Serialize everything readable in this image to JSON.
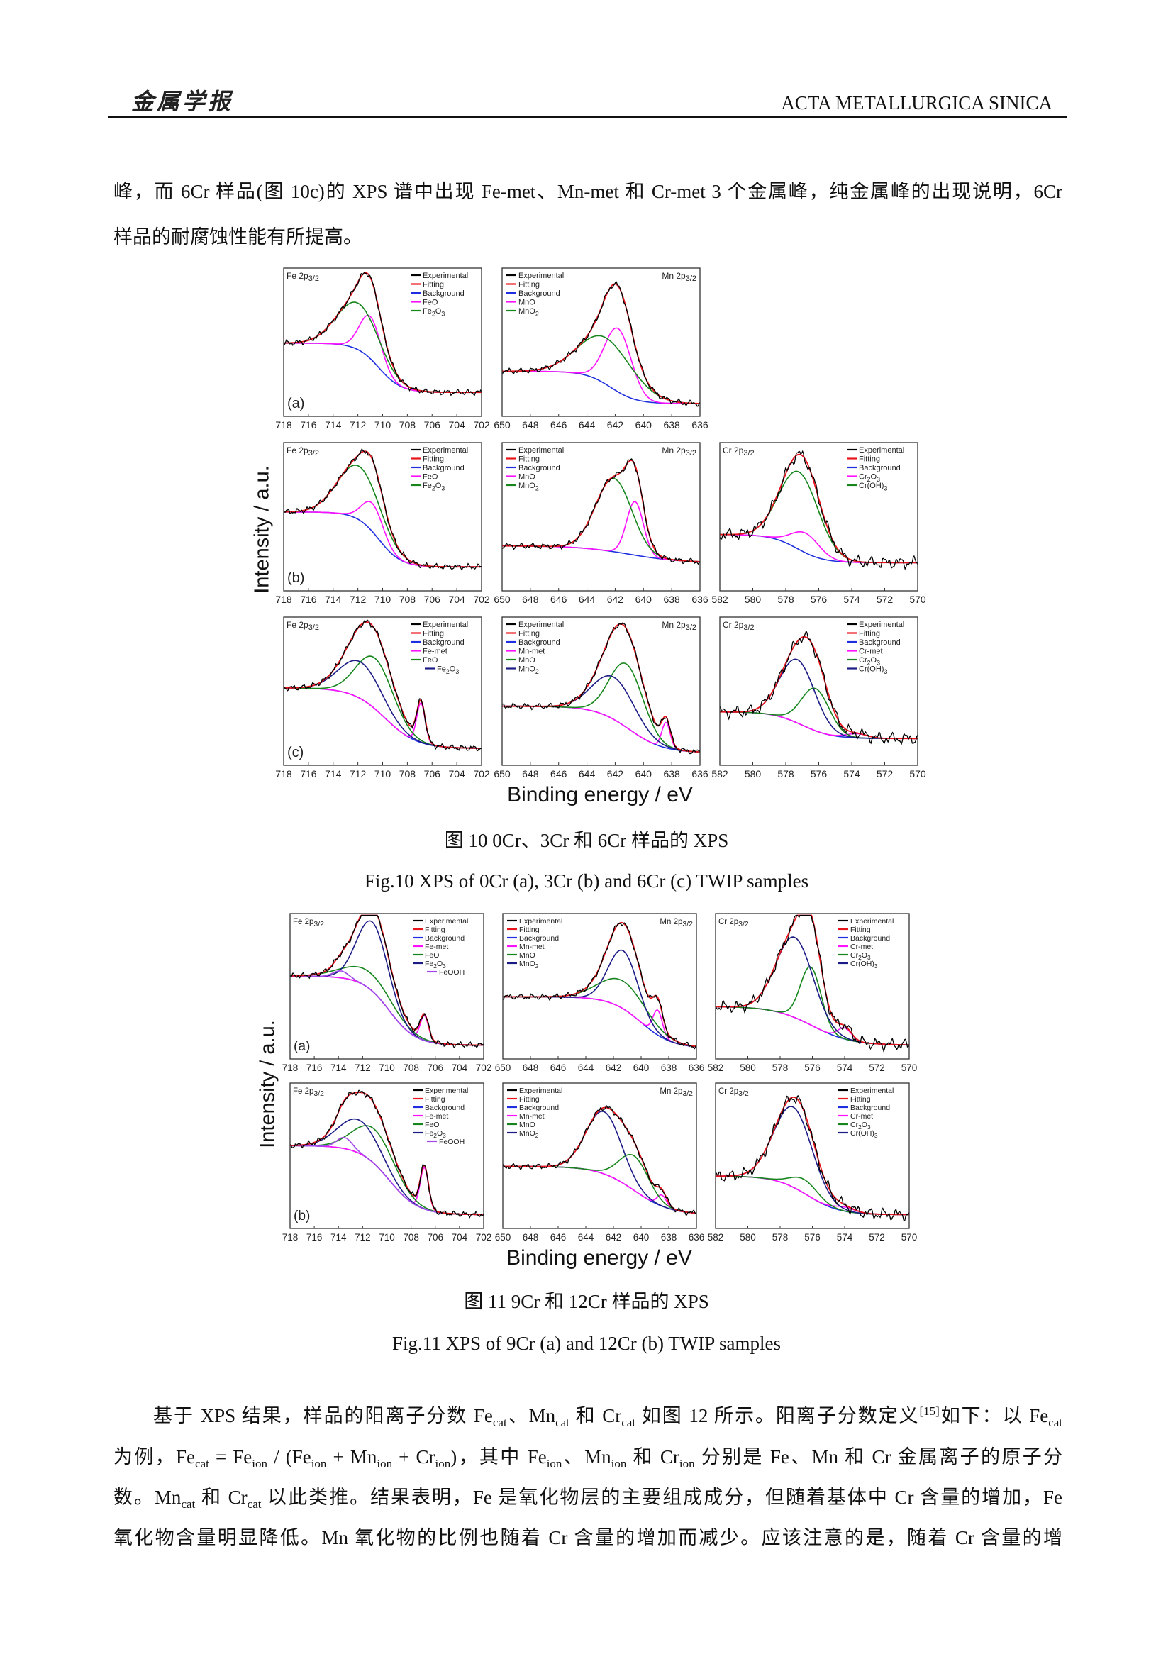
{
  "header": {
    "logo_text": "金属学报",
    "journal": "ACTA METALLURGICA SINICA"
  },
  "intro_lines": [
    "峰，而 6Cr 样品(图 10c)的 XPS 谱中出现 Fe-met、Mn-met 和 Cr-met 3 个金属峰，纯金属峰的出现说明，6Cr",
    "样品的耐腐蚀性能有所提高。"
  ],
  "figures": [
    {
      "caption_zh": "图 10 0Cr、3Cr 和 6Cr 样品的 XPS",
      "caption_en": "Fig.10 XPS of 0Cr (a), 3Cr (b) and 6Cr (c) TWIP samples",
      "ylabel": "Intensity / a.u.",
      "xlabel": "Binding energy / eV"
    },
    {
      "caption_zh": "图 11 9Cr 和 12Cr 样品的 XPS",
      "caption_en": "Fig.11 XPS of 9Cr (a) and 12Cr (b) TWIP samples",
      "ylabel": "Intensity / a.u.",
      "xlabel": "Binding energy / eV"
    }
  ],
  "colors": {
    "Experimental": "#000000",
    "Fitting": "#e8141c",
    "Background": "#1f2fe0",
    "magenta": "#ff10ff",
    "green": "#16861c",
    "navy": "#1c1c86",
    "purple": "#a048e8"
  },
  "chart_data": [
    {
      "figure": 10,
      "type": "line",
      "panel_label": "(a)",
      "title": "Fe 2p",
      "title_sub": "3/2",
      "xlim": [
        718,
        702
      ],
      "xticks": [
        718,
        716,
        714,
        712,
        710,
        708,
        706,
        704,
        702
      ],
      "legend": [
        "Experimental",
        "Fitting",
        "Background",
        "FeO",
        "Fe2O3"
      ],
      "background": {
        "high": 0.52,
        "low": 0.17,
        "center": 710.3,
        "width": 0.9
      },
      "components": [
        {
          "name": "FeO",
          "color": "magenta",
          "center": 711.0,
          "fwhm": 2.0,
          "height": 0.3
        },
        {
          "name": "Fe2O3",
          "color": "green",
          "center": 712.0,
          "fwhm": 4.0,
          "height": 0.33
        }
      ]
    },
    {
      "figure": 10,
      "type": "line",
      "panel_label": "",
      "title": "Mn 2p",
      "title_sub": "3/2",
      "xlim": [
        650,
        636
      ],
      "xticks": [
        650,
        648,
        646,
        644,
        642,
        640,
        638,
        636
      ],
      "legend": [
        "Experimental",
        "Fitting",
        "Background",
        "MnO",
        "MnO2"
      ],
      "background": {
        "high": 0.32,
        "low": 0.09,
        "center": 642.3,
        "width": 0.9
      },
      "components": [
        {
          "name": "MnO",
          "color": "magenta",
          "center": 641.8,
          "fwhm": 2.2,
          "height": 0.45
        },
        {
          "name": "MnO2",
          "color": "green",
          "center": 642.6,
          "fwhm": 4.5,
          "height": 0.33
        }
      ]
    },
    {
      "figure": 10,
      "type": "line",
      "panel_label": "(b)",
      "title": "Fe 2p",
      "title_sub": "3/2",
      "xlim": [
        718,
        702
      ],
      "xticks": [
        718,
        716,
        714,
        712,
        710,
        708,
        706,
        704,
        702
      ],
      "legend": [
        "Experimental",
        "Fitting",
        "Background",
        "FeO",
        "Fe2O3"
      ],
      "background": {
        "high": 0.56,
        "low": 0.17,
        "center": 710.3,
        "width": 0.9
      },
      "components": [
        {
          "name": "FeO",
          "color": "magenta",
          "center": 710.8,
          "fwhm": 2.0,
          "height": 0.2
        },
        {
          "name": "Fe2O3",
          "color": "green",
          "center": 711.9,
          "fwhm": 4.0,
          "height": 0.38
        }
      ]
    },
    {
      "figure": 10,
      "type": "line",
      "panel_label": "",
      "title": "Mn 2p",
      "title_sub": "3/2",
      "xlim": [
        650,
        636
      ],
      "xticks": [
        650,
        648,
        646,
        644,
        642,
        640,
        638,
        636
      ],
      "legend": [
        "Experimental",
        "Fitting",
        "Background",
        "MnO",
        "MnO2"
      ],
      "background": {
        "high": 0.32,
        "low": 0.2,
        "center": 641.0,
        "width": 1.8
      },
      "components": [
        {
          "name": "MnO",
          "color": "magenta",
          "center": 640.6,
          "fwhm": 1.4,
          "height": 0.38
        },
        {
          "name": "MnO2",
          "color": "green",
          "center": 642.1,
          "fwhm": 3.0,
          "height": 0.52
        }
      ]
    },
    {
      "figure": 10,
      "type": "line",
      "panel_label": "",
      "title": "Cr 2p",
      "title_sub": "3/2",
      "xlim": [
        582,
        570
      ],
      "xticks": [
        582,
        580,
        578,
        576,
        574,
        572,
        570
      ],
      "legend": [
        "Experimental",
        "Fitting",
        "Background",
        "Cr2O3",
        "Cr(OH)3"
      ],
      "background": {
        "high": 0.4,
        "low": 0.2,
        "center": 577.3,
        "width": 0.8
      },
      "components": [
        {
          "name": "Cr2O3",
          "color": "magenta",
          "center": 576.8,
          "fwhm": 2.0,
          "height": 0.14
        },
        {
          "name": "Cr(OH)3",
          "color": "green",
          "center": 577.2,
          "fwhm": 2.8,
          "height": 0.55
        }
      ]
    },
    {
      "figure": 10,
      "type": "line",
      "panel_label": "(c)",
      "title": "Fe 2p",
      "title_sub": "3/2",
      "xlim": [
        718,
        702
      ],
      "xticks": [
        718,
        716,
        714,
        712,
        710,
        708,
        706,
        704,
        702
      ],
      "legend": [
        "Experimental",
        "Fitting",
        "Background",
        "Fe-met",
        "FeO",
        "Fe2O3"
      ],
      "background": {
        "high": 0.55,
        "low": 0.12,
        "center": 709.8,
        "width": 1.3
      },
      "components": [
        {
          "name": "Fe-met",
          "color": "magenta",
          "center": 706.9,
          "fwhm": 0.8,
          "height": 0.28
        },
        {
          "name": "FeO",
          "color": "green",
          "center": 710.6,
          "fwhm": 3.5,
          "height": 0.36
        },
        {
          "name": "Fe2O3",
          "color": "navy",
          "center": 711.8,
          "fwhm": 4.0,
          "height": 0.26
        }
      ]
    },
    {
      "figure": 10,
      "type": "line",
      "panel_label": "",
      "title": "Mn 2p",
      "title_sub": "3/2",
      "xlim": [
        650,
        636
      ],
      "xticks": [
        650,
        648,
        646,
        644,
        642,
        640,
        638,
        636
      ],
      "legend": [
        "Experimental",
        "Fitting",
        "Background",
        "Mn-met",
        "MnO",
        "MnO2"
      ],
      "background": {
        "high": 0.42,
        "low": 0.09,
        "center": 641.0,
        "width": 1.2
      },
      "components": [
        {
          "name": "Mn-met",
          "color": "magenta",
          "center": 638.4,
          "fwhm": 0.7,
          "height": 0.18
        },
        {
          "name": "MnO",
          "color": "green",
          "center": 641.2,
          "fwhm": 2.8,
          "height": 0.45
        },
        {
          "name": "MnO2",
          "color": "navy",
          "center": 642.1,
          "fwhm": 3.5,
          "height": 0.3
        }
      ]
    },
    {
      "figure": 10,
      "type": "line",
      "panel_label": "",
      "title": "Cr 2p",
      "title_sub": "3/2",
      "xlim": [
        582,
        570
      ],
      "xticks": [
        582,
        580,
        578,
        576,
        574,
        572,
        570
      ],
      "legend": [
        "Experimental",
        "Fitting",
        "Background",
        "Cr-met",
        "Cr2O3",
        "Cr(OH)3"
      ],
      "background": {
        "high": 0.38,
        "low": 0.19,
        "center": 577.0,
        "width": 0.9
      },
      "components": [
        {
          "name": "Cr-met",
          "color": "magenta",
          "center": 573.7,
          "fwhm": 1.5,
          "height": 0.03
        },
        {
          "name": "Cr2O3",
          "color": "green",
          "center": 576.2,
          "fwhm": 2.0,
          "height": 0.3
        },
        {
          "name": "Cr(OH)3",
          "color": "navy",
          "center": 577.3,
          "fwhm": 2.5,
          "height": 0.45
        }
      ]
    },
    {
      "figure": 11,
      "type": "line",
      "panel_label": "(a)",
      "title": "Fe 2p",
      "title_sub": "3/2",
      "xlim": [
        718,
        702
      ],
      "xticks": [
        718,
        716,
        714,
        712,
        710,
        708,
        706,
        704,
        702
      ],
      "legend": [
        "Experimental",
        "Fitting",
        "Background",
        "Fe-met",
        "FeO",
        "Fe2O3",
        "FeOOH"
      ],
      "background": {
        "high": 0.6,
        "low": 0.1,
        "center": 709.8,
        "width": 1.1
      },
      "components": [
        {
          "name": "Fe-met",
          "color": "magenta",
          "center": 706.9,
          "fwhm": 0.8,
          "height": 0.18
        },
        {
          "name": "FeO",
          "color": "green",
          "center": 711.5,
          "fwhm": 5.0,
          "height": 0.12
        },
        {
          "name": "Fe2O3",
          "color": "navy",
          "center": 711.2,
          "fwhm": 3.0,
          "height": 0.5
        },
        {
          "name": "FeOOH",
          "color": "purple",
          "center": 713.8,
          "fwhm": 1.5,
          "height": 0.05
        }
      ]
    },
    {
      "figure": 11,
      "type": "line",
      "panel_label": "",
      "title": "Mn 2p",
      "title_sub": "3/2",
      "xlim": [
        650,
        636
      ],
      "xticks": [
        650,
        648,
        646,
        644,
        642,
        640,
        638,
        636
      ],
      "legend": [
        "Experimental",
        "Fitting",
        "Background",
        "Mn-met",
        "MnO",
        "MnO2"
      ],
      "background": {
        "high": 0.45,
        "low": 0.08,
        "center": 640.0,
        "width": 1.1
      },
      "components": [
        {
          "name": "Mn-met",
          "color": "magenta",
          "center": 638.8,
          "fwhm": 0.8,
          "height": 0.18
        },
        {
          "name": "MnO",
          "color": "green",
          "center": 641.3,
          "fwhm": 4.0,
          "height": 0.2
        },
        {
          "name": "MnO2",
          "color": "navy",
          "center": 641.3,
          "fwhm": 2.5,
          "height": 0.42
        }
      ]
    },
    {
      "figure": 11,
      "type": "line",
      "panel_label": "",
      "title": "Cr 2p",
      "title_sub": "3/2",
      "xlim": [
        582,
        570
      ],
      "xticks": [
        582,
        580,
        578,
        576,
        574,
        572,
        570
      ],
      "legend": [
        "Experimental",
        "Fitting",
        "Background",
        "Cr-met",
        "Cr2O3",
        "Cr(OH)3"
      ],
      "background": {
        "high": 0.38,
        "low": 0.1,
        "center": 576.0,
        "width": 1.2
      },
      "components": [
        {
          "name": "Cr-met",
          "color": "magenta",
          "center": 574.0,
          "fwhm": 1.0,
          "height": 0.08
        },
        {
          "name": "Cr2O3",
          "color": "green",
          "center": 576.1,
          "fwhm": 1.5,
          "height": 0.42
        },
        {
          "name": "Cr(OH)3",
          "color": "navy",
          "center": 577.1,
          "fwhm": 2.7,
          "height": 0.58
        }
      ]
    },
    {
      "figure": 11,
      "type": "line",
      "panel_label": "(b)",
      "title": "Fe 2p",
      "title_sub": "3/2",
      "xlim": [
        718,
        702
      ],
      "xticks": [
        718,
        716,
        714,
        712,
        710,
        708,
        706,
        704,
        702
      ],
      "legend": [
        "Experimental",
        "Fitting",
        "Background",
        "Fe-met",
        "FeO",
        "Fe2O3",
        "FeOOH"
      ],
      "background": {
        "high": 0.6,
        "low": 0.1,
        "center": 709.8,
        "width": 1.2
      },
      "components": [
        {
          "name": "Fe-met",
          "color": "magenta",
          "center": 706.9,
          "fwhm": 0.8,
          "height": 0.3
        },
        {
          "name": "FeO",
          "color": "green",
          "center": 711.0,
          "fwhm": 4.0,
          "height": 0.25
        },
        {
          "name": "Fe2O3",
          "color": "navy",
          "center": 712.3,
          "fwhm": 4.0,
          "height": 0.24
        },
        {
          "name": "FeOOH",
          "color": "purple",
          "center": 713.5,
          "fwhm": 1.5,
          "height": 0.08
        }
      ]
    },
    {
      "figure": 11,
      "type": "line",
      "panel_label": "",
      "title": "Mn 2p",
      "title_sub": "3/2",
      "xlim": [
        650,
        636
      ],
      "xticks": [
        650,
        648,
        646,
        644,
        642,
        640,
        638,
        636
      ],
      "legend": [
        "Experimental",
        "Fitting",
        "Background",
        "Mn-met",
        "MnO",
        "MnO2"
      ],
      "background": {
        "high": 0.45,
        "low": 0.1,
        "center": 640.5,
        "width": 1.3
      },
      "components": [
        {
          "name": "Mn-met",
          "color": "magenta",
          "center": 638.5,
          "fwhm": 0.8,
          "height": 0.08
        },
        {
          "name": "MnO",
          "color": "green",
          "center": 640.5,
          "fwhm": 2.5,
          "height": 0.25
        },
        {
          "name": "MnO2",
          "color": "navy",
          "center": 642.7,
          "fwhm": 3.0,
          "height": 0.45
        }
      ]
    },
    {
      "figure": 11,
      "type": "line",
      "panel_label": "",
      "title": "Cr 2p",
      "title_sub": "3/2",
      "xlim": [
        582,
        570
      ],
      "xticks": [
        582,
        580,
        578,
        576,
        574,
        572,
        570
      ],
      "legend": [
        "Experimental",
        "Fitting",
        "Background",
        "Cr-met",
        "Cr2O3",
        "Cr(OH)3"
      ],
      "background": {
        "high": 0.38,
        "low": 0.1,
        "center": 576.3,
        "width": 1.0
      },
      "components": [
        {
          "name": "Cr-met",
          "color": "magenta",
          "center": 574.0,
          "fwhm": 1.5,
          "height": 0.03
        },
        {
          "name": "Cr2O3",
          "color": "green",
          "center": 576.5,
          "fwhm": 2.0,
          "height": 0.1
        },
        {
          "name": "Cr(OH)3",
          "color": "navy",
          "center": 577.2,
          "fwhm": 2.8,
          "height": 0.58
        }
      ]
    }
  ],
  "paragraph_lines": [
    [
      {
        "t": "基于 XPS 结果，样品的阳离子分数 Fe"
      },
      {
        "sub": "cat"
      },
      {
        "t": "、Mn"
      },
      {
        "sub": "cat"
      },
      {
        "t": " 和 Cr"
      },
      {
        "sub": "cat"
      },
      {
        "t": " 如图 12 所示。阳离子分数定义"
      },
      {
        "sup": "[15]"
      },
      {
        "t": "如下：以 Fe"
      },
      {
        "sub": "cat"
      }
    ],
    [
      {
        "t": "为例，Fe"
      },
      {
        "sub": "cat"
      },
      {
        "t": " = Fe"
      },
      {
        "sub": "ion"
      },
      {
        "t": " / (Fe"
      },
      {
        "sub": "ion"
      },
      {
        "t": " + Mn"
      },
      {
        "sub": "ion"
      },
      {
        "t": " + Cr"
      },
      {
        "sub": "ion"
      },
      {
        "t": ")，其中 Fe"
      },
      {
        "sub": "ion"
      },
      {
        "t": "、Mn"
      },
      {
        "sub": "ion"
      },
      {
        "t": " 和 Cr"
      },
      {
        "sub": "ion"
      },
      {
        "t": " 分别是 Fe、Mn 和 Cr 金属离子的原子分"
      }
    ],
    [
      {
        "t": "数。Mn"
      },
      {
        "sub": "cat"
      },
      {
        "t": " 和 Cr"
      },
      {
        "sub": "cat"
      },
      {
        "t": " 以此类推。结果表明，Fe 是氧化物层的主要组成成分，但随着基体中 Cr 含量的增加，Fe"
      }
    ],
    [
      {
        "t": "氧化物含量明显降低。Mn 氧化物的比例也随着 Cr 含量的增加而减少。应该注意的是，随着 Cr 含量的增"
      }
    ]
  ]
}
